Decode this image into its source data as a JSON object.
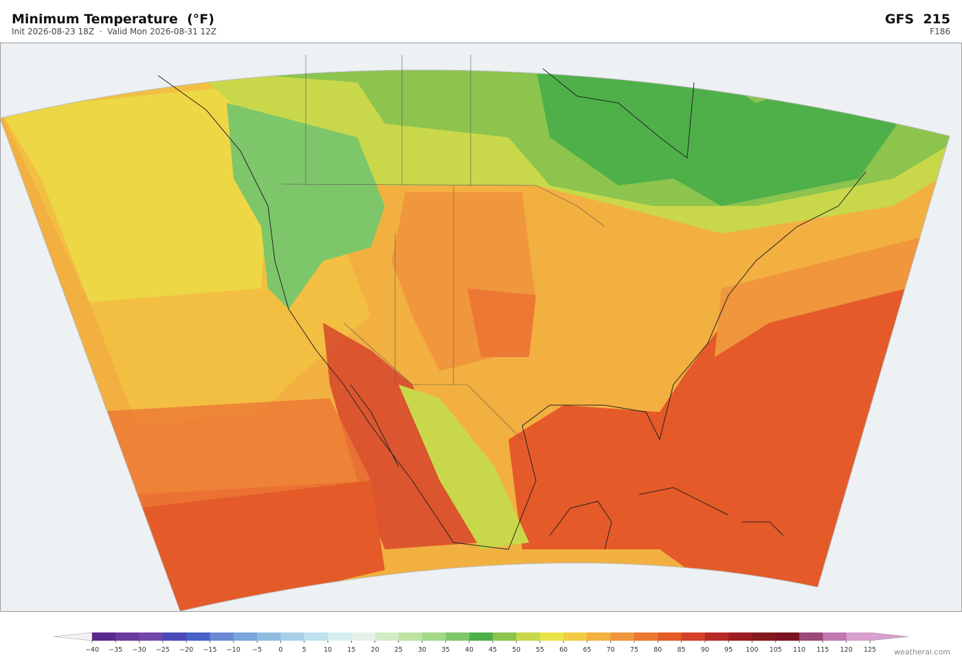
{
  "header": {
    "title": "Minimum Temperature  (°F)",
    "subtitle": "Init 2026-08-23 18Z  ·  Valid Mon 2026-08-31 12Z",
    "model": "GFS  215",
    "forecast_hour": "F186"
  },
  "colorbar": {
    "range": [
      -40,
      125
    ],
    "ticks": [
      {
        "value": -40,
        "label": "−40"
      },
      {
        "value": -35,
        "label": "−35"
      },
      {
        "value": -30,
        "label": "−30"
      },
      {
        "value": -25,
        "label": "−25"
      },
      {
        "value": -20,
        "label": "−20"
      },
      {
        "value": -15,
        "label": "−15"
      },
      {
        "value": -10,
        "label": "−10"
      },
      {
        "value": -5,
        "label": "−5"
      },
      0,
      5,
      10,
      15,
      20,
      25,
      30,
      35,
      40,
      45,
      50,
      55,
      60,
      65,
      70,
      75,
      80,
      85,
      90,
      95,
      100,
      105,
      110,
      115,
      120,
      125
    ],
    "colors": [
      "#5b2a8e",
      "#6a3a9c",
      "#7048aa",
      "#4a4ab8",
      "#4a62c8",
      "#6a88d4",
      "#7aa6dc",
      "#90bce0",
      "#a8d0e8",
      "#c0e0ee",
      "#d6eef2",
      "#e4f2ea",
      "#d2ecc8",
      "#bde3a0",
      "#a2d888",
      "#7ec66a",
      "#4fb04a",
      "#8cc44e",
      "#c8d84a",
      "#e8e448",
      "#f2cc44",
      "#f4b040",
      "#f0963c",
      "#ec7834",
      "#e45a28",
      "#d4402a",
      "#b82a26",
      "#9a1e22",
      "#841a1e",
      "#7a1420",
      "#9c4878",
      "#c078b0",
      "#d8a0cc"
    ],
    "extend_colors": [
      "#f4f0f6",
      "#d8a0cc"
    ]
  },
  "footer": {
    "credit": "weatherai.com"
  }
}
